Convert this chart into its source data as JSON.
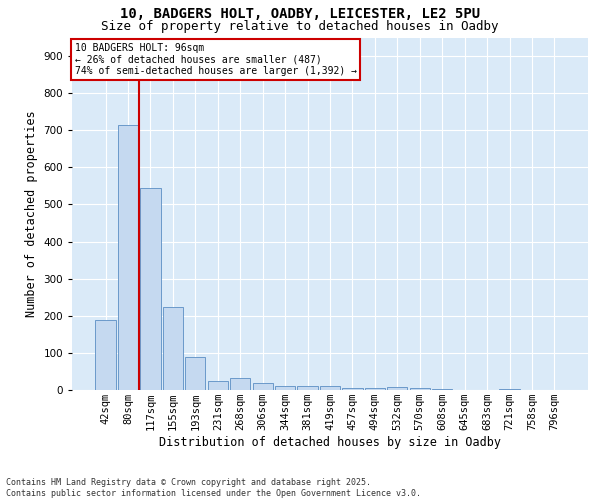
{
  "title_line1": "10, BADGERS HOLT, OADBY, LEICESTER, LE2 5PU",
  "title_line2": "Size of property relative to detached houses in Oadby",
  "xlabel": "Distribution of detached houses by size in Oadby",
  "ylabel": "Number of detached properties",
  "bar_labels": [
    "42sqm",
    "80sqm",
    "117sqm",
    "155sqm",
    "193sqm",
    "231sqm",
    "268sqm",
    "306sqm",
    "344sqm",
    "381sqm",
    "419sqm",
    "457sqm",
    "494sqm",
    "532sqm",
    "570sqm",
    "608sqm",
    "645sqm",
    "683sqm",
    "721sqm",
    "758sqm",
    "796sqm"
  ],
  "bar_values": [
    190,
    715,
    545,
    225,
    90,
    25,
    33,
    18,
    12,
    10,
    10,
    6,
    5,
    8,
    6,
    3,
    0,
    0,
    3,
    1,
    0
  ],
  "bar_color": "#c5d9f0",
  "bar_edge_color": "#5b8ec4",
  "background_color": "#daeaf8",
  "grid_color": "#ffffff",
  "fig_background": "#ffffff",
  "vline_x": 1.5,
  "vline_color": "#cc0000",
  "annotation_text": "10 BADGERS HOLT: 96sqm\n← 26% of detached houses are smaller (487)\n74% of semi-detached houses are larger (1,392) →",
  "annotation_box_color": "#ffffff",
  "annotation_box_edge": "#cc0000",
  "ylim": [
    0,
    950
  ],
  "yticks": [
    0,
    100,
    200,
    300,
    400,
    500,
    600,
    700,
    800,
    900
  ],
  "footnote": "Contains HM Land Registry data © Crown copyright and database right 2025.\nContains public sector information licensed under the Open Government Licence v3.0.",
  "title_fontsize": 10,
  "subtitle_fontsize": 9,
  "axis_label_fontsize": 8.5,
  "tick_fontsize": 7.5,
  "annotation_fontsize": 7
}
